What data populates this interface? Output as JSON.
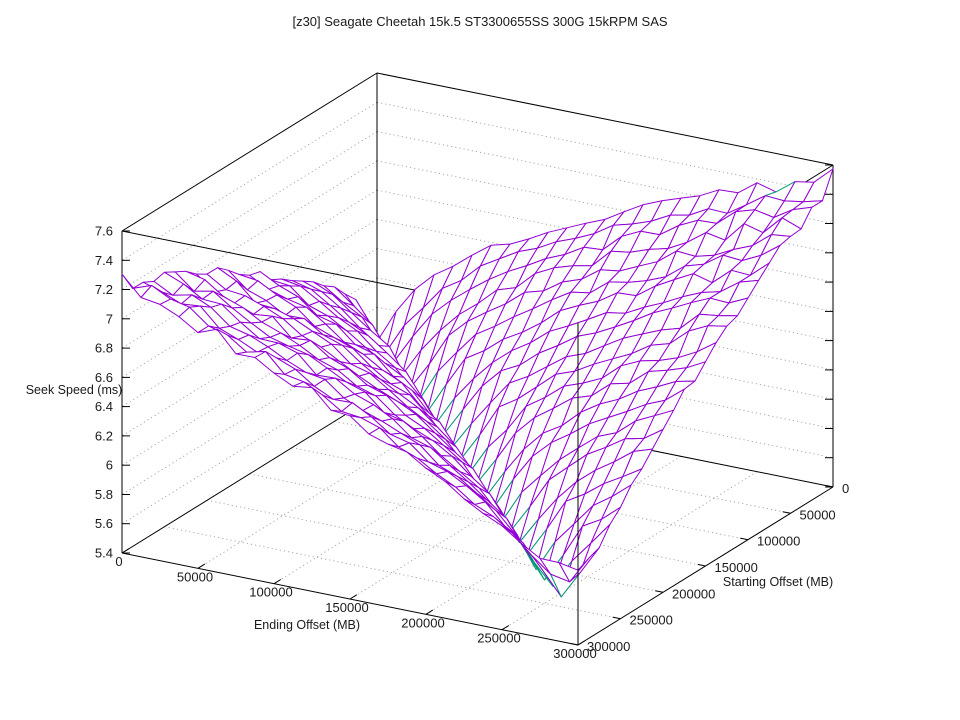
{
  "chart_data": {
    "type": "surface3d-wireframe",
    "title": "[z30] Seagate Cheetah 15k.5 ST3300655SS 300G 15kRPM SAS",
    "xlabel": "Ending Offset (MB)",
    "ylabel": "Starting Offset (MB)",
    "zlabel": "Seek Speed (ms)",
    "xlim": [
      0,
      300000
    ],
    "ylim": [
      0,
      300000
    ],
    "zlim": [
      5.4,
      7.6
    ],
    "grid": true,
    "legend": "none",
    "x_tick_values": [
      0,
      50000,
      100000,
      150000,
      200000,
      250000,
      300000
    ],
    "x_tick_labels": [
      "0",
      "50000",
      "100000",
      "150000",
      "200000",
      "250000",
      "300000"
    ],
    "y_tick_values": [
      0,
      50000,
      100000,
      150000,
      200000,
      250000,
      300000
    ],
    "y_tick_labels": [
      "0",
      "50000",
      "100000",
      "150000",
      "200000",
      "250000",
      "300000"
    ],
    "z_tick_values": [
      5.4,
      5.6,
      5.8,
      6.0,
      6.2,
      6.4,
      6.6,
      6.8,
      7.0,
      7.2,
      7.4,
      7.6
    ],
    "z_tick_labels": [
      "5.4",
      "5.6",
      "5.8",
      "6",
      "6.2",
      "6.4",
      "6.6",
      "6.8",
      "7",
      "7.2",
      "7.4",
      "7.6"
    ],
    "x_values": [
      0,
      25000,
      50000,
      75000,
      100000,
      125000,
      150000,
      175000,
      200000,
      225000,
      250000,
      275000,
      300000
    ],
    "y_values": [
      0,
      25000,
      50000,
      75000,
      100000,
      125000,
      150000,
      175000,
      200000,
      225000,
      250000,
      275000,
      300000
    ],
    "z_grid_note": "rows = Starting Offset (y_values), cols = Ending Offset (x_values), values = Seek Speed in ms estimated from plot",
    "z_grid": [
      [
        5.78,
        6.19,
        6.4,
        6.56,
        6.7,
        6.83,
        6.94,
        7.05,
        7.15,
        7.24,
        7.34,
        7.43,
        7.52
      ],
      [
        6.13,
        5.76,
        6.16,
        6.37,
        6.54,
        6.68,
        6.8,
        6.92,
        7.02,
        7.12,
        7.22,
        7.31,
        7.4
      ],
      [
        6.3,
        6.11,
        5.74,
        6.14,
        6.35,
        6.52,
        6.66,
        6.78,
        6.9,
        7.0,
        7.1,
        7.2,
        7.29
      ],
      [
        6.44,
        6.28,
        6.09,
        5.72,
        6.12,
        6.33,
        6.49,
        6.63,
        6.76,
        6.87,
        6.98,
        7.08,
        7.17
      ],
      [
        6.56,
        6.42,
        6.26,
        6.06,
        5.7,
        6.1,
        6.3,
        6.47,
        6.61,
        6.74,
        6.85,
        6.96,
        7.06
      ],
      [
        6.67,
        6.54,
        6.4,
        6.24,
        6.04,
        5.67,
        6.08,
        6.28,
        6.45,
        6.59,
        6.72,
        6.83,
        6.94
      ],
      [
        6.77,
        6.65,
        6.52,
        6.38,
        6.22,
        6.02,
        5.65,
        6.06,
        6.26,
        6.42,
        6.56,
        6.69,
        6.81
      ],
      [
        6.86,
        6.75,
        6.63,
        6.5,
        6.36,
        6.2,
        6.0,
        5.63,
        6.04,
        6.24,
        6.4,
        6.54,
        6.67
      ],
      [
        6.95,
        6.84,
        6.73,
        6.61,
        6.48,
        6.34,
        6.17,
        5.98,
        5.61,
        6.01,
        6.22,
        6.38,
        6.52
      ],
      [
        7.03,
        6.93,
        6.82,
        6.71,
        6.59,
        6.46,
        6.31,
        6.15,
        5.96,
        5.59,
        5.99,
        6.19,
        6.36
      ],
      [
        7.11,
        7.01,
        6.9,
        6.8,
        6.68,
        6.56,
        6.43,
        6.29,
        6.13,
        5.93,
        5.55,
        5.97,
        6.17
      ],
      [
        7.18,
        7.08,
        6.99,
        6.88,
        6.78,
        6.66,
        6.54,
        6.41,
        6.27,
        6.11,
        5.91,
        5.6,
        5.97
      ],
      [
        7.25,
        7.16,
        7.06,
        6.96,
        6.86,
        6.75,
        6.64,
        6.52,
        6.39,
        6.25,
        6.09,
        5.95,
        5.9
      ]
    ],
    "colors": {
      "surface_top": "#9400d3",
      "surface_bottom": "#009e73",
      "box": "#000000",
      "grid_dots": "#a8a8a8",
      "text": "#1a1a1a",
      "background": "#ffffff"
    }
  }
}
